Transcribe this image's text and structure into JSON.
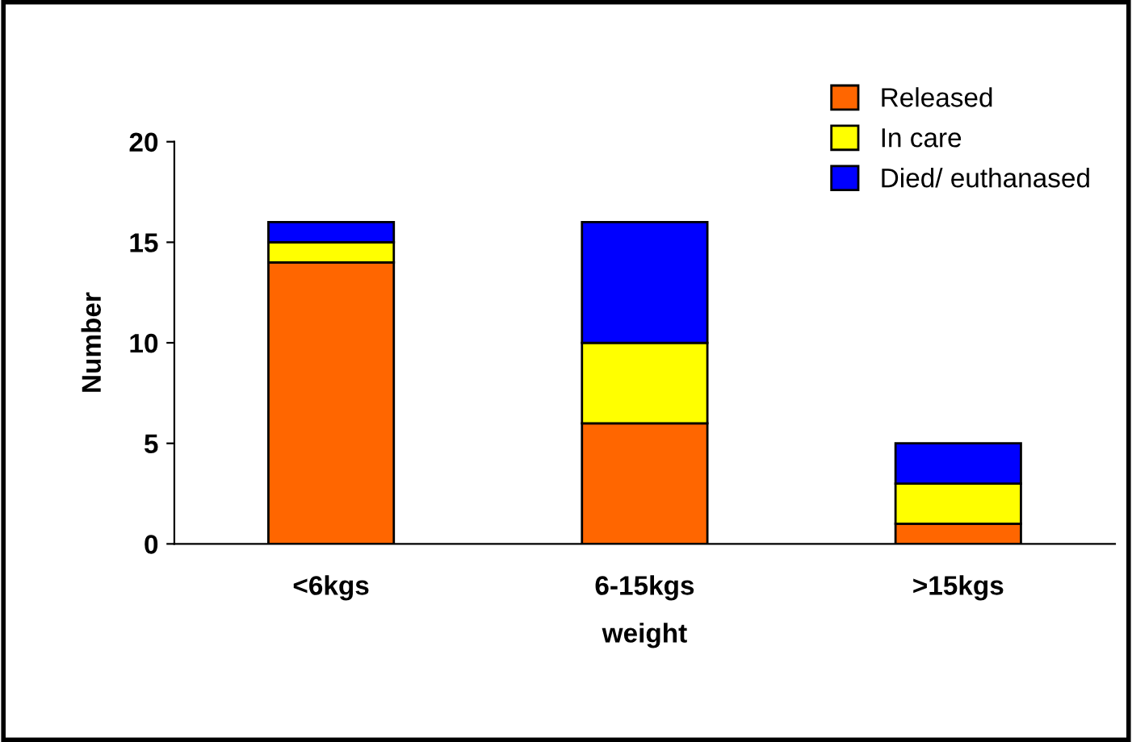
{
  "chart_data": {
    "type": "bar",
    "stacked": true,
    "xlabel": "weight",
    "ylabel": "Number",
    "categories": [
      "<6kgs",
      "6-15kgs",
      ">15kgs"
    ],
    "series": [
      {
        "name": "Released",
        "color": "#ff6600",
        "values": [
          14,
          6,
          1
        ]
      },
      {
        "name": "In care",
        "color": "#ffff00",
        "values": [
          1,
          4,
          2
        ]
      },
      {
        "name": "Died/ euthanased",
        "color": "#0000ff",
        "values": [
          1,
          6,
          2
        ]
      }
    ],
    "ylim": [
      0,
      20
    ],
    "yticks": [
      0,
      5,
      10,
      15,
      20
    ],
    "grid": false,
    "legend": "top right"
  }
}
